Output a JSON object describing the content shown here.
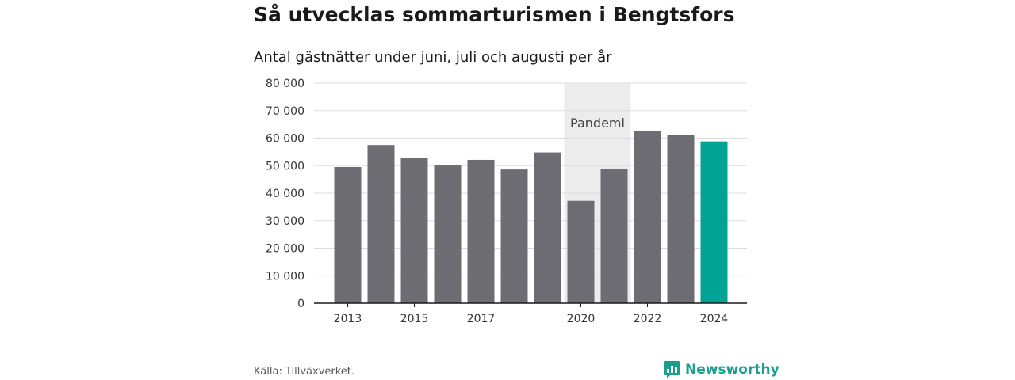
{
  "title": "Så utvecklas sommarturismen i Bengtsfors",
  "subtitle": "Antal gästnätter under juni, juli och augusti per år",
  "source": "Källa: Tillväxverket.",
  "brand": {
    "name": "Newsworthy",
    "icon": "bar-chart-speech-icon"
  },
  "colors": {
    "bar": "#6e6d74",
    "highlight": "#00a396",
    "pandemic_band": "#ececec",
    "grid": "#dddddd",
    "axis": "#1a1a1a",
    "brand": "#1a9e8e"
  },
  "chart_data": {
    "type": "bar",
    "categories": [
      "2013",
      "2014",
      "2015",
      "2016",
      "2017",
      "2018",
      "2019",
      "2020",
      "2021",
      "2022",
      "2023",
      "2024"
    ],
    "values": [
      49500,
      57500,
      52800,
      50100,
      52100,
      48600,
      54800,
      37200,
      48900,
      62500,
      61200,
      58800
    ],
    "highlight_category": "2024",
    "x_tick_labels": [
      "2013",
      "2015",
      "2017",
      "2020",
      "2022",
      "2024"
    ],
    "y_ticks": [
      0,
      10000,
      20000,
      30000,
      40000,
      50000,
      60000,
      70000,
      80000
    ],
    "y_tick_labels": [
      "0",
      "10 000",
      "20 000",
      "30 000",
      "40 000",
      "50 000",
      "60 000",
      "70 000",
      "80 000"
    ],
    "ylim": [
      0,
      80000
    ],
    "grid": true,
    "annotation": {
      "label": "Pandemi",
      "x_start": "2020",
      "x_end": "2021"
    }
  }
}
